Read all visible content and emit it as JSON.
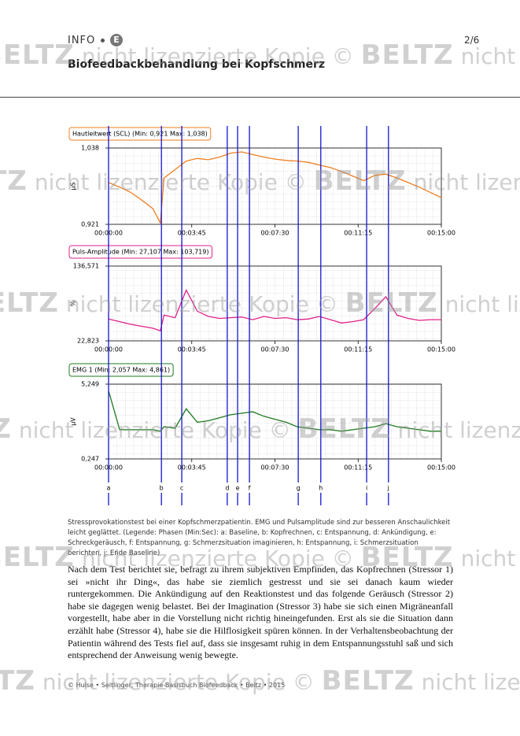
{
  "header": {
    "label": "INFO",
    "badge": "E",
    "title": "Biofeedbackbehandlung bei Kopfschmerz",
    "page": "2/6"
  },
  "chart_data": [
    {
      "type": "line",
      "title": "Hautleitwert (SCL) (Min: 0,921 Max: 1,038)",
      "y_label": "µS",
      "color": "#f07f1f",
      "x": [
        0,
        30,
        60,
        90,
        120,
        140,
        150,
        180,
        210,
        240,
        270,
        300,
        330,
        360,
        390,
        420,
        450,
        480,
        510,
        540,
        570,
        600,
        630,
        660,
        690,
        720,
        750,
        780,
        810,
        840,
        870,
        900
      ],
      "values": [
        0.985,
        0.978,
        0.97,
        0.958,
        0.945,
        0.923,
        0.992,
        1.005,
        1.018,
        1.022,
        1.02,
        1.024,
        1.03,
        1.032,
        1.028,
        1.024,
        1.021,
        1.019,
        1.018,
        1.016,
        1.012,
        1.008,
        1.002,
        0.995,
        0.988,
        0.996,
        0.998,
        0.992,
        0.985,
        0.978,
        0.97,
        0.962
      ],
      "xlim": [
        0,
        900
      ],
      "ylim": [
        0.921,
        1.038
      ],
      "xticks": [
        {
          "value": 0,
          "label": "00:00:00"
        },
        {
          "value": 225,
          "label": "00:03:45"
        },
        {
          "value": 450,
          "label": "00:07:30"
        },
        {
          "value": 675,
          "label": "00:11:15"
        },
        {
          "value": 900,
          "label": "00:15:00"
        }
      ],
      "yticks": [
        {
          "value": 0.921,
          "label": "0,921"
        },
        {
          "value": 1.038,
          "label": "1,038"
        }
      ],
      "grid": true
    },
    {
      "type": "line",
      "title": "Puls-Amplitude (Min: 27,107 Max: 103,719)",
      "y_label": "%",
      "color": "#e0208a",
      "x": [
        0,
        30,
        60,
        90,
        120,
        140,
        150,
        180,
        210,
        240,
        270,
        300,
        330,
        360,
        390,
        420,
        450,
        480,
        510,
        540,
        570,
        600,
        630,
        660,
        690,
        720,
        750,
        780,
        810,
        840,
        870,
        900
      ],
      "values": [
        56,
        52,
        48,
        45,
        42,
        38,
        62,
        58,
        100,
        68,
        60,
        57,
        58,
        59,
        55,
        60,
        57,
        58,
        55,
        56,
        60,
        55,
        50,
        52,
        55,
        72,
        90,
        62,
        57,
        54,
        55,
        55
      ],
      "xlim": [
        0,
        900
      ],
      "ylim": [
        22.823,
        136.571
      ],
      "xticks": [
        {
          "value": 0,
          "label": "00:00:00"
        },
        {
          "value": 225,
          "label": "00:03:45"
        },
        {
          "value": 450,
          "label": "00:07:30"
        },
        {
          "value": 675,
          "label": "00:11:15"
        },
        {
          "value": 900,
          "label": "00:15:00"
        }
      ],
      "yticks": [
        {
          "value": 22.823,
          "label": "22,823"
        },
        {
          "value": 136.571,
          "label": "136,571"
        }
      ],
      "grid": true
    },
    {
      "type": "line",
      "title": "EMG 1 (Min: 2,057 Max: 4,861)",
      "y_label": "µV",
      "color": "#1e7a1e",
      "x": [
        0,
        30,
        60,
        90,
        120,
        140,
        150,
        180,
        210,
        240,
        270,
        300,
        330,
        360,
        390,
        420,
        450,
        480,
        510,
        540,
        570,
        600,
        630,
        660,
        690,
        720,
        750,
        780,
        810,
        840,
        870,
        900
      ],
      "values": [
        4.8,
        2.2,
        2.2,
        2.2,
        2.2,
        2.1,
        2.4,
        2.3,
        3.6,
        2.7,
        2.8,
        3.0,
        3.2,
        3.3,
        3.4,
        3.1,
        2.9,
        2.7,
        2.4,
        2.3,
        2.2,
        2.2,
        2.1,
        2.2,
        2.3,
        2.4,
        2.6,
        2.4,
        2.3,
        2.2,
        2.1,
        2.1
      ],
      "xlim": [
        0,
        900
      ],
      "ylim": [
        0.247,
        5.249
      ],
      "xticks": [
        {
          "value": 0,
          "label": "00:00:00"
        },
        {
          "value": 225,
          "label": "00:03:45"
        },
        {
          "value": 450,
          "label": "00:07:30"
        },
        {
          "value": 675,
          "label": "00:11:15"
        },
        {
          "value": 900,
          "label": "00:15:00"
        }
      ],
      "yticks": [
        {
          "value": 0.247,
          "label": "0,247"
        },
        {
          "value": 5.249,
          "label": "5,249"
        }
      ],
      "grid": true
    }
  ],
  "phases": {
    "labels": [
      "a",
      "b",
      "c",
      "d",
      "e",
      "f",
      "g",
      "h",
      "i",
      "j"
    ],
    "x": [
      0,
      143,
      198,
      321,
      349,
      381,
      513,
      574,
      698,
      757
    ],
    "color": "#1515d0"
  },
  "caption": "Stressprovokationstest bei einer Kopfschmerzpatientin. EMG und Pulsamplitude sind zur besseren Anschaulichkeit leicht geglättet. (Legende: Phasen (Min:Sec): a: Baseline, b: Kopfrechnen, c: Entspannung, d: Ankündigung, e: Schreckgeräusch, f: Entspannung, g: Schmerzsituation imaginieren, h: Entspannung, i: Schmerzsituation berichten, j: Ende Baseline)",
  "body": "Nach dem Test berichtet sie, befragt zu ihrem subjektiven Empfinden, das Kopfrechnen (Stressor 1) sei »nicht ihr Ding«, das habe sie ziemlich gestresst und sie sei danach kaum wieder runtergekommen. Die Ankündigung auf den Reaktionstest und das folgende Geräusch (Stressor 2) habe sie dagegen wenig belastet. Bei der Imagination (Stressor 3) habe sie sich einen Migräneanfall vorgestellt, habe aber in die Vorstellung nicht richtig hineingefunden. Erst als sie die Situation dann erzählt habe (Stressor 4), habe sie die Hilflosigkeit spüren können. In der Verhaltensbeobachtung der Patientin während des Tests fiel auf, dass sie insgesamt ruhig in dem Entspannungsstuhl saß und sich entsprechend der Anweisung wenig bewegte.",
  "footer": "© Hulse • Seitlinger, Therapie-Basisbuch Biofeedback • Beltz • 2015",
  "watermark": {
    "copyright": "©",
    "brand": "BELTZ",
    "text": "nicht lizenzierte Kopie"
  }
}
